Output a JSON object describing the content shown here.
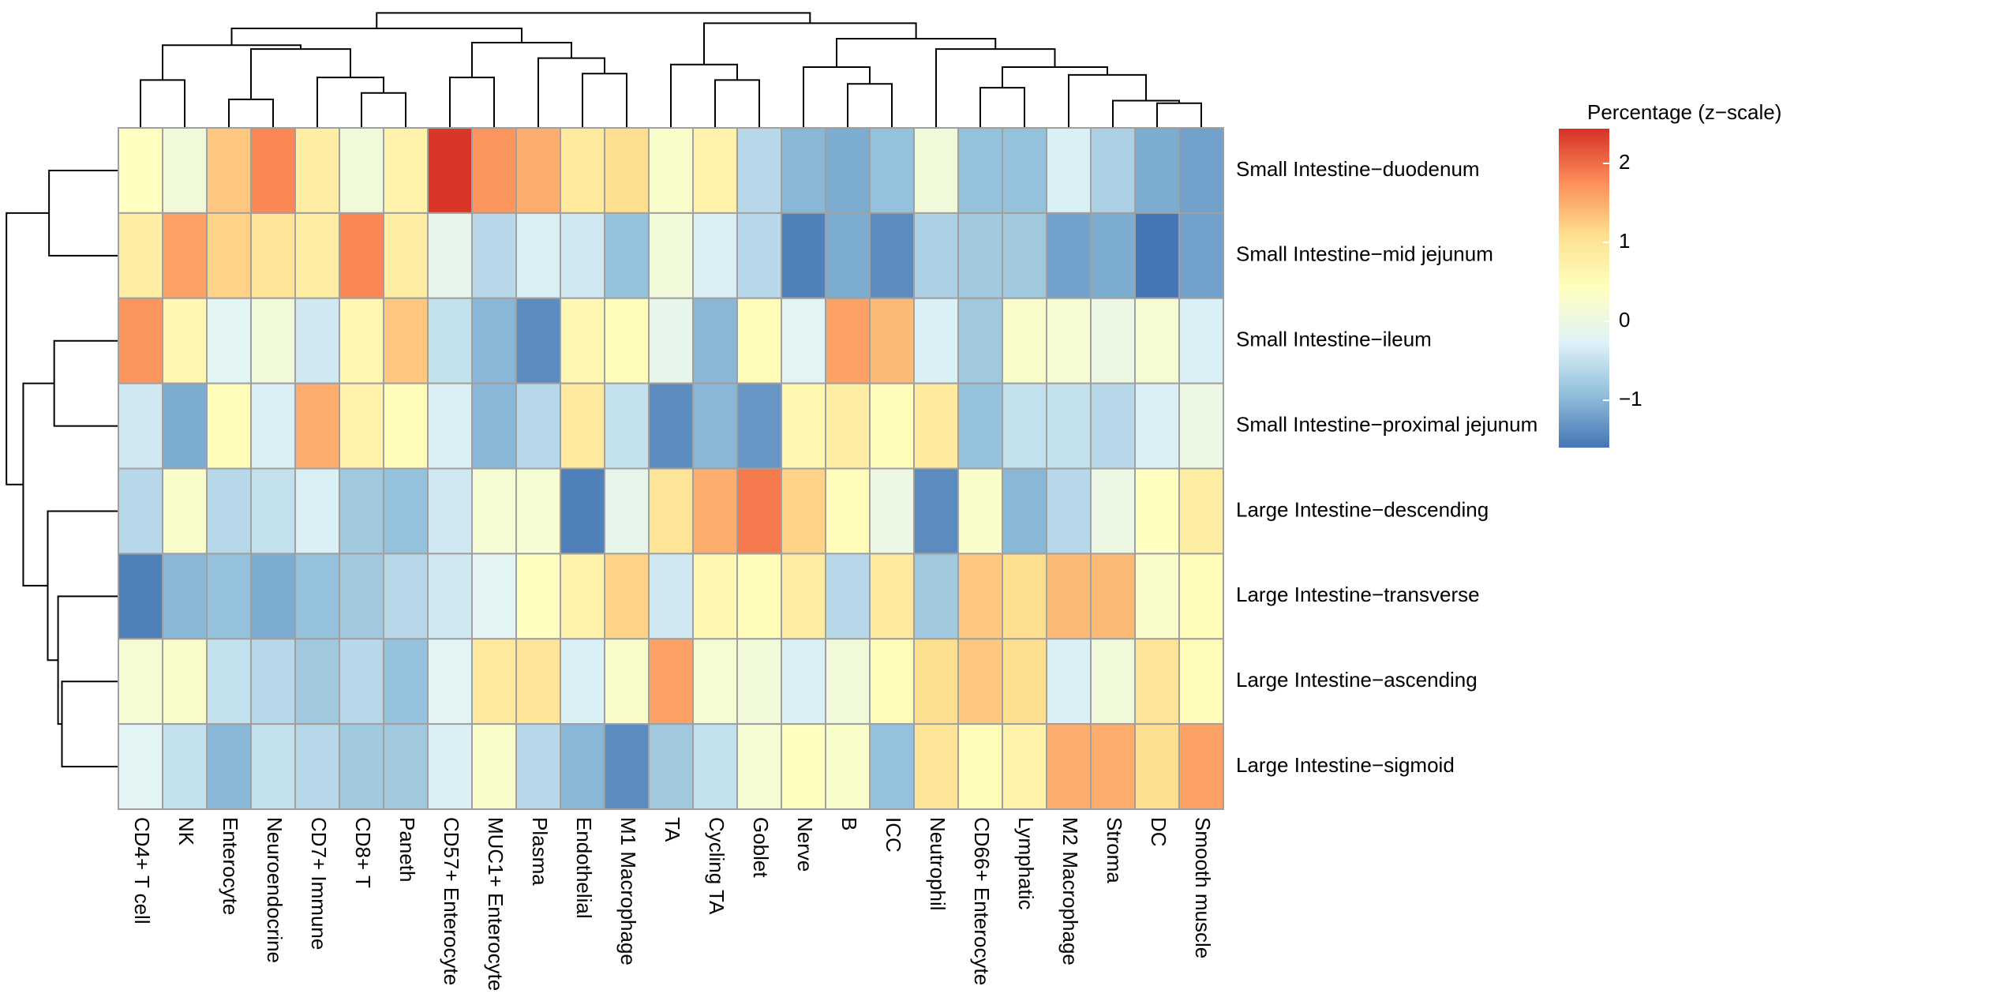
{
  "chart_data": {
    "type": "heatmap",
    "columns": [
      "CD4+ T cell",
      "NK",
      "Enterocyte",
      "Neuroendocrine",
      "CD7+ Immune",
      "CD8+ T",
      "Paneth",
      "CD57+ Enterocyte",
      "MUC1+ Enterocyte",
      "Plasma",
      "Endothelial",
      "M1 Macrophage",
      "TA",
      "Cycling TA",
      "Goblet",
      "Nerve",
      "B",
      "ICC",
      "Neutrophil",
      "CD66+ Enterocyte",
      "Lymphatic",
      "M2 Macrophage",
      "Stroma",
      "DC",
      "Smooth muscle"
    ],
    "rows": [
      "Small Intestine−duodenum",
      "Small Intestine−mid jejunum",
      "Small Intestine−ileum",
      "Small Intestine−proximal jejunum",
      "Large Intestine−descending",
      "Large Intestine−transverse",
      "Large Intestine−ascending",
      "Large Intestine−sigmoid"
    ],
    "values": [
      [
        0.4,
        0.1,
        1.3,
        1.8,
        0.8,
        0.1,
        0.7,
        2.4,
        1.7,
        1.5,
        0.9,
        1.1,
        0.3,
        0.7,
        -0.6,
        -1.0,
        -1.1,
        -0.9,
        0.1,
        -0.9,
        -0.9,
        -0.3,
        -0.7,
        -1.1,
        -1.2
      ],
      [
        0.8,
        1.6,
        1.2,
        1.0,
        0.8,
        1.8,
        0.8,
        -0.1,
        -0.6,
        -0.3,
        -0.4,
        -0.9,
        0.1,
        -0.3,
        -0.6,
        -1.5,
        -1.1,
        -1.4,
        -0.7,
        -0.8,
        -0.8,
        -1.2,
        -1.1,
        -1.6,
        -1.2
      ],
      [
        1.7,
        0.6,
        -0.2,
        0.1,
        -0.4,
        0.6,
        1.3,
        -0.5,
        -1.0,
        -1.4,
        0.6,
        0.5,
        -0.1,
        -1.0,
        0.5,
        -0.2,
        1.6,
        1.4,
        -0.3,
        -0.8,
        0.3,
        0.2,
        0.0,
        0.2,
        -0.3
      ],
      [
        -0.4,
        -1.1,
        0.5,
        -0.3,
        1.5,
        0.7,
        0.5,
        -0.3,
        -1.0,
        -0.6,
        0.9,
        -0.5,
        -1.4,
        -1.0,
        -1.3,
        0.6,
        0.8,
        0.5,
        0.9,
        -0.9,
        -0.5,
        -0.5,
        -0.6,
        -0.3,
        0.0
      ],
      [
        -0.6,
        0.3,
        -0.6,
        -0.5,
        -0.3,
        -0.8,
        -0.9,
        -0.4,
        0.2,
        0.2,
        -1.5,
        -0.1,
        1.0,
        1.5,
        1.9,
        1.2,
        0.5,
        0.0,
        -1.4,
        0.3,
        -1.0,
        -0.6,
        0.0,
        0.4,
        0.8
      ],
      [
        -1.5,
        -1.0,
        -0.9,
        -1.1,
        -0.9,
        -0.8,
        -0.6,
        -0.4,
        -0.2,
        0.4,
        0.7,
        1.2,
        -0.4,
        0.6,
        0.5,
        0.8,
        -0.6,
        0.9,
        -0.8,
        1.3,
        1.1,
        1.4,
        1.4,
        0.3,
        0.5
      ],
      [
        0.2,
        0.3,
        -0.5,
        -0.6,
        -0.8,
        -0.6,
        -0.9,
        -0.2,
        0.9,
        1.0,
        -0.3,
        0.3,
        1.6,
        0.2,
        0.1,
        -0.3,
        0.1,
        0.5,
        1.1,
        1.3,
        1.1,
        -0.3,
        0.1,
        1.0,
        0.5
      ],
      [
        -0.2,
        -0.5,
        -1.0,
        -0.5,
        -0.6,
        -0.8,
        -0.8,
        -0.3,
        0.3,
        -0.6,
        -1.0,
        -1.4,
        -0.8,
        -0.5,
        0.2,
        0.4,
        0.3,
        -0.9,
        1.0,
        0.5,
        0.7,
        1.5,
        1.5,
        1.1,
        1.6
      ]
    ],
    "colorbar": {
      "title": "Percentage (z−scale)",
      "colors": [
        "#4575B4",
        "#91BFDB",
        "#E0F3F8",
        "#FFFFBF",
        "#FEE090",
        "#FC8D59",
        "#D73027"
      ],
      "lim": [
        -1.6,
        2.44
      ],
      "ticks": [
        {
          "value": -1,
          "label": "−1"
        },
        0,
        1,
        2
      ]
    }
  }
}
